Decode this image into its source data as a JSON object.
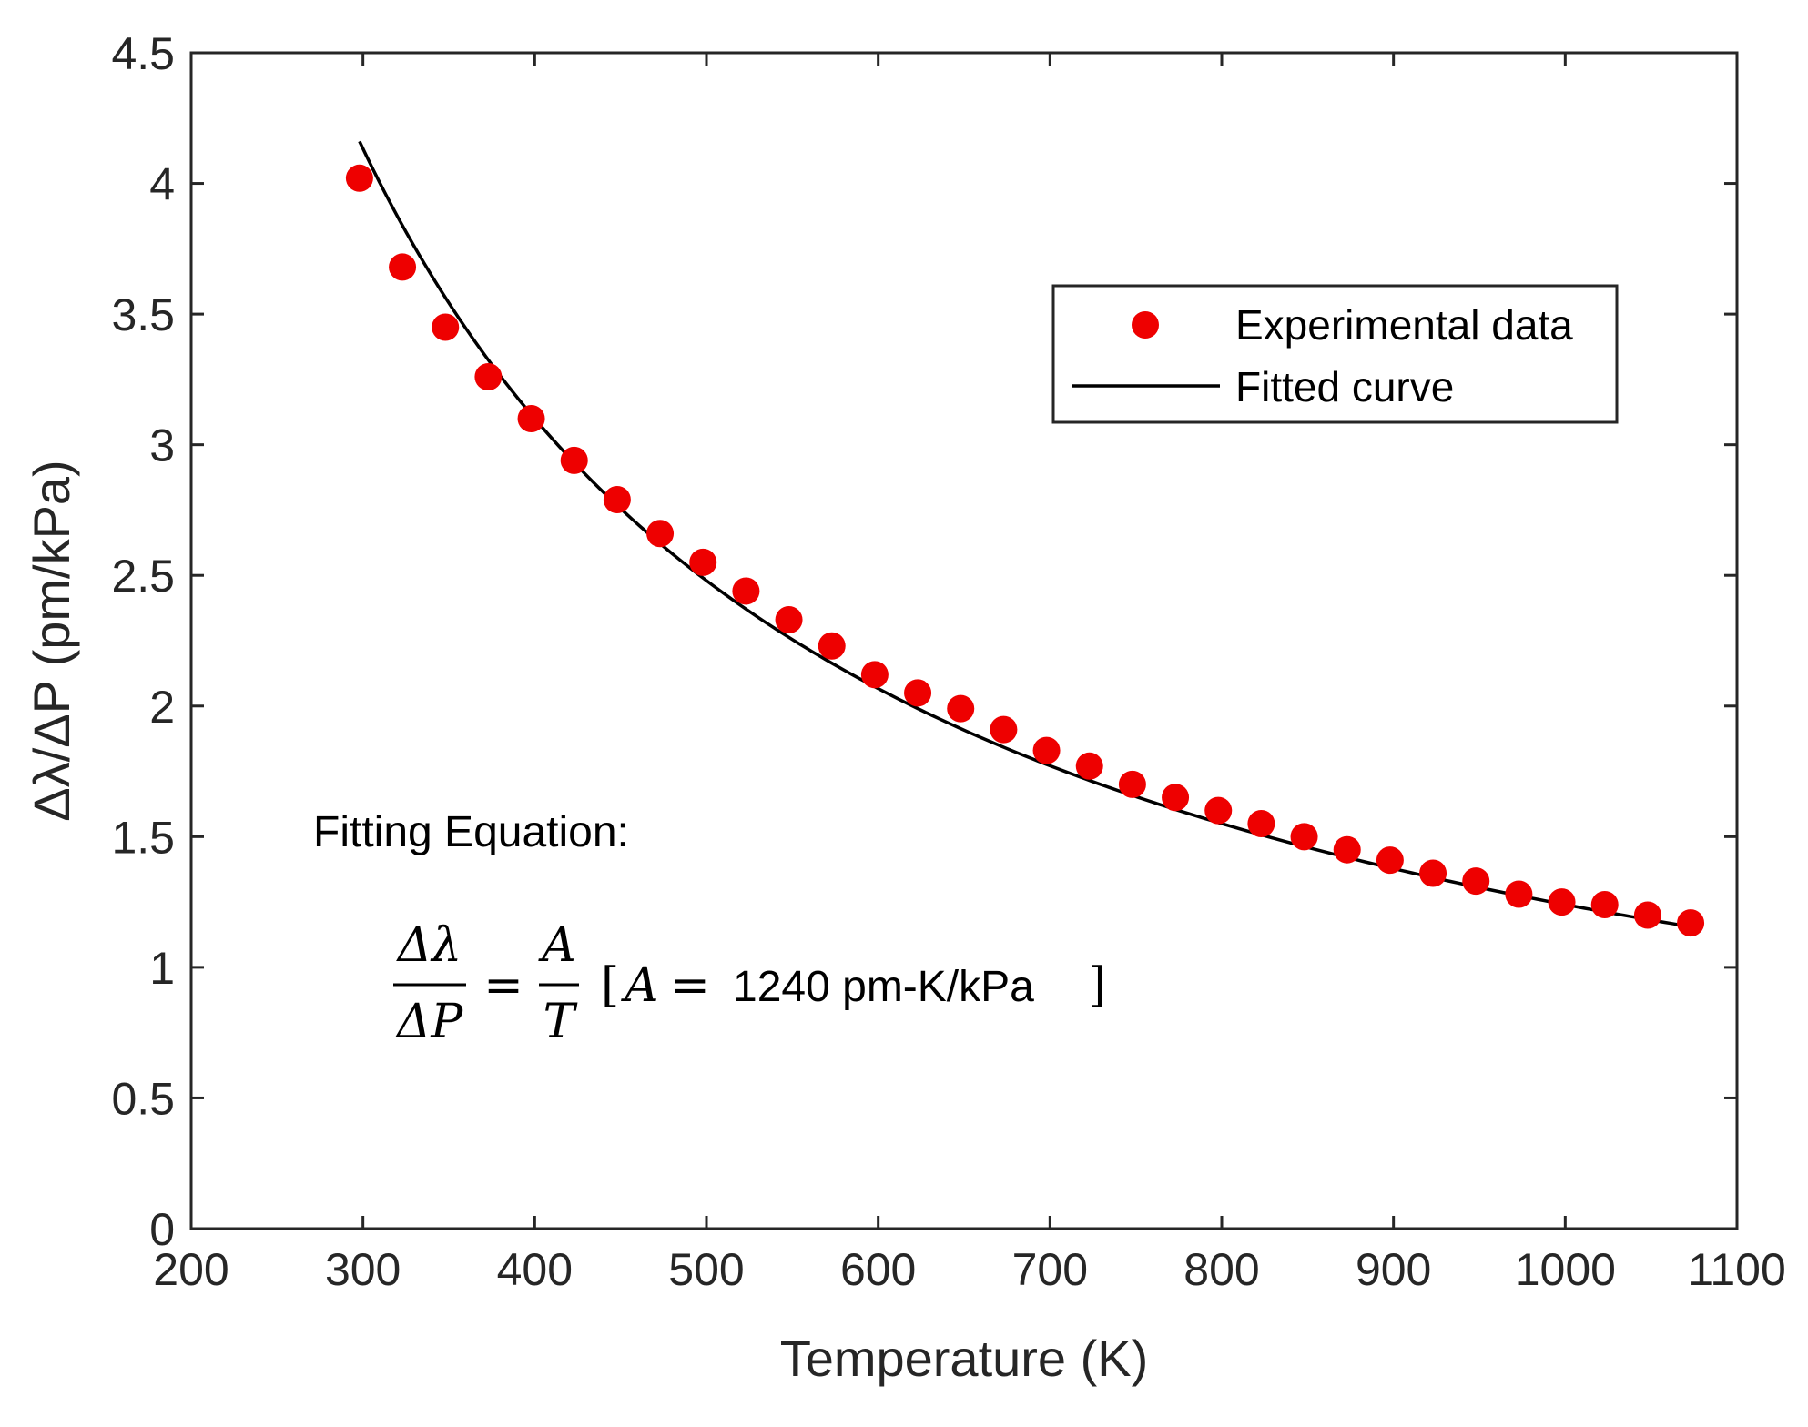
{
  "chart_data": {
    "type": "scatter",
    "title": "",
    "xlabel": "Temperature (K)",
    "ylabel": "Δλ/ΔP (pm/kPa)",
    "xlim": [
      200,
      1100
    ],
    "ylim": [
      0,
      4.5
    ],
    "xticks": [
      200,
      300,
      400,
      500,
      600,
      700,
      800,
      900,
      1000,
      1100
    ],
    "yticks": [
      0,
      0.5,
      1,
      1.5,
      2,
      2.5,
      3,
      3.5,
      4,
      4.5
    ],
    "xtick_labels": [
      "200",
      "300",
      "400",
      "500",
      "600",
      "700",
      "800",
      "900",
      "1000",
      "1100"
    ],
    "ytick_labels": [
      "0",
      "0.5",
      "1",
      "1.5",
      "2",
      "2.5",
      "3",
      "3.5",
      "4",
      "4.5"
    ],
    "grid": false,
    "legend_position": "top-right",
    "series": [
      {
        "name": "Experimental data",
        "kind": "points",
        "color": "#ee0000",
        "x": [
          298,
          323,
          348,
          373,
          398,
          423,
          448,
          473,
          498,
          523,
          548,
          573,
          598,
          623,
          648,
          673,
          698,
          723,
          748,
          773,
          798,
          823,
          848,
          873,
          898,
          923,
          948,
          973,
          998,
          1023,
          1048,
          1073
        ],
        "y": [
          4.02,
          3.68,
          3.45,
          3.26,
          3.1,
          2.94,
          2.79,
          2.66,
          2.55,
          2.44,
          2.33,
          2.23,
          2.12,
          2.05,
          1.99,
          1.91,
          1.83,
          1.77,
          1.7,
          1.65,
          1.6,
          1.55,
          1.5,
          1.45,
          1.41,
          1.36,
          1.33,
          1.28,
          1.25,
          1.24,
          1.2,
          1.17
        ]
      },
      {
        "name": "Fitted curve",
        "kind": "line",
        "color": "#000000",
        "function": "A/T",
        "A": 1240,
        "x_range": [
          298,
          1073
        ]
      }
    ],
    "annotation": {
      "heading": "Fitting Equation:",
      "lhs_numerator": "Δλ",
      "lhs_denominator": "ΔP",
      "equals": "=",
      "rhs_numerator": "A",
      "rhs_denominator": "T",
      "bracket_open": "[",
      "param_symbol": "A",
      "param_equals": "=",
      "param_value": "1240 pm-K/kPa",
      "bracket_close": "]"
    }
  }
}
